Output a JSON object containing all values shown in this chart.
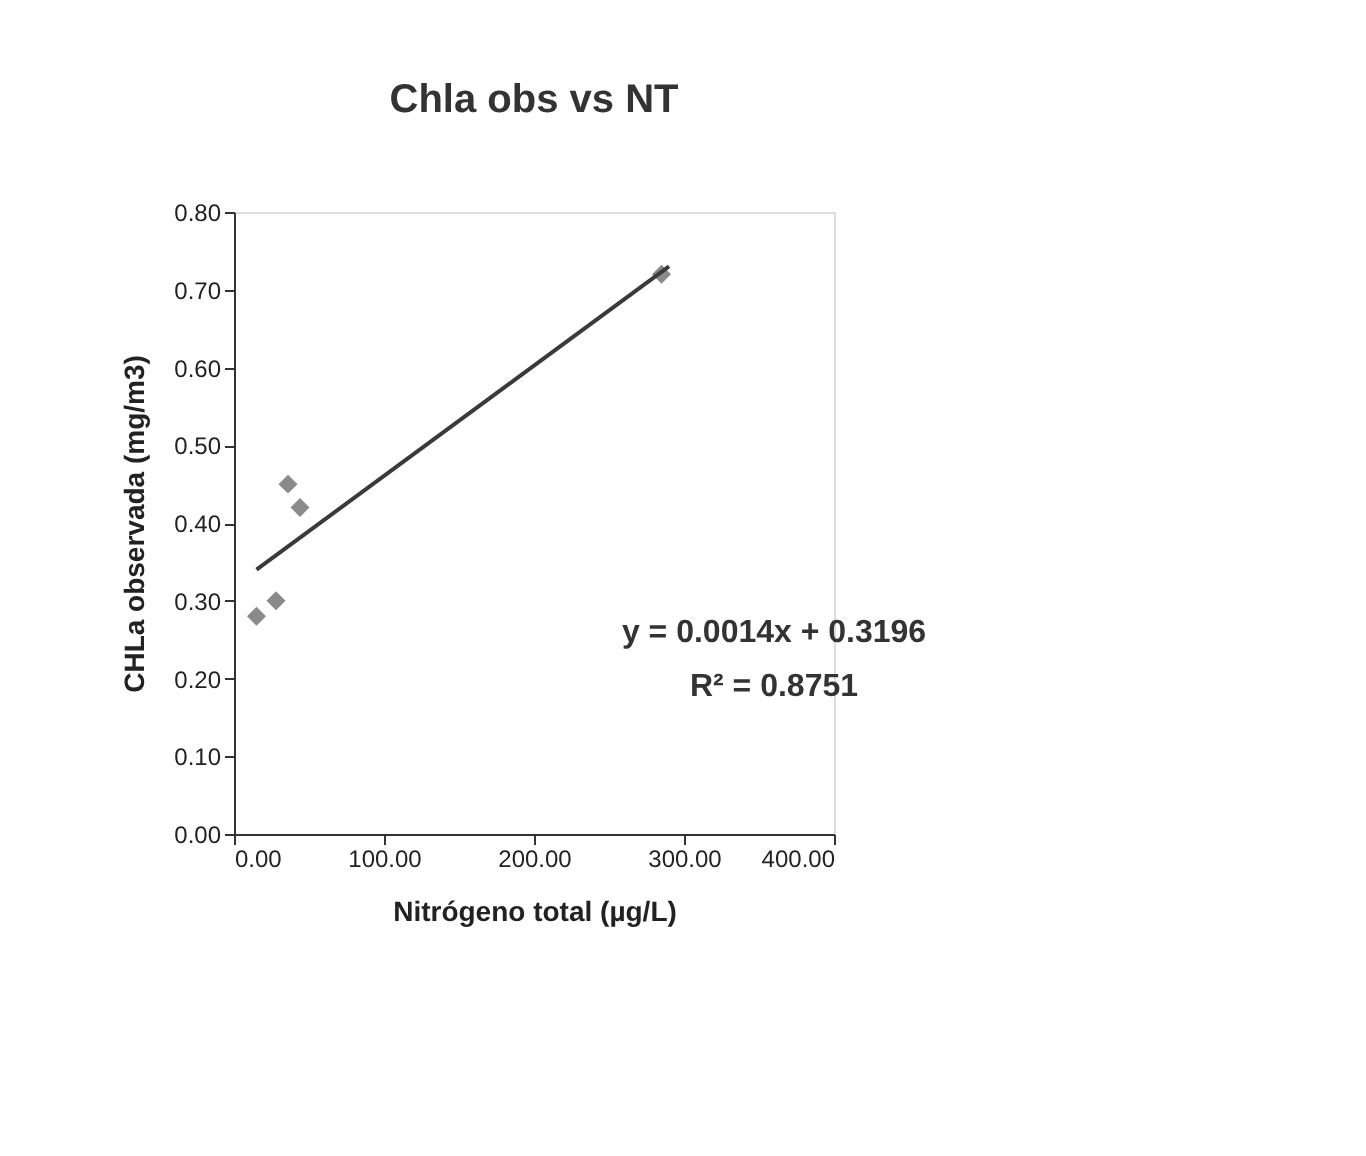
{
  "chart_data": {
    "type": "scatter",
    "title": "Chla obs vs NT",
    "xlabel": "Nitrógeno total (µg/L)",
    "ylabel": "CHLa observada (mg/m3)",
    "xlim": [
      0,
      400
    ],
    "xticks": [
      {
        "value": 0,
        "label": "0.00"
      },
      {
        "value": 100,
        "label": "100.00"
      },
      {
        "value": 200,
        "label": "200.00"
      },
      {
        "value": 300,
        "label": "300.00"
      },
      {
        "value": 400,
        "label": "400.00"
      }
    ],
    "ylim": [
      0,
      0.8
    ],
    "yticks": [
      {
        "value": 0,
        "label": "0.00"
      },
      {
        "value": 0.1,
        "label": "0.10"
      },
      {
        "value": 0.2,
        "label": "0.20"
      },
      {
        "value": 0.3,
        "label": "0.30"
      },
      {
        "value": 0.4,
        "label": "0.40"
      },
      {
        "value": 0.5,
        "label": "0.50"
      },
      {
        "value": 0.6,
        "label": "0.60"
      },
      {
        "value": 0.7,
        "label": "0.70"
      },
      {
        "value": 0.8,
        "label": "0.80"
      }
    ],
    "grid": false,
    "series": [
      {
        "marker": "diamond",
        "color": "#8a8a8a",
        "x": [
          15,
          28,
          36,
          44,
          285
        ],
        "values": [
          0.28,
          0.3,
          0.45,
          0.42,
          0.72
        ]
      },
      {
        "type": "line",
        "line_style": "solid",
        "color": "#3a3a3a",
        "x": [
          15,
          290
        ],
        "values": [
          0.34,
          0.73
        ]
      }
    ],
    "annotations": [
      "y = 0.0014x + 0.3196",
      "R² = 0.8751"
    ]
  }
}
